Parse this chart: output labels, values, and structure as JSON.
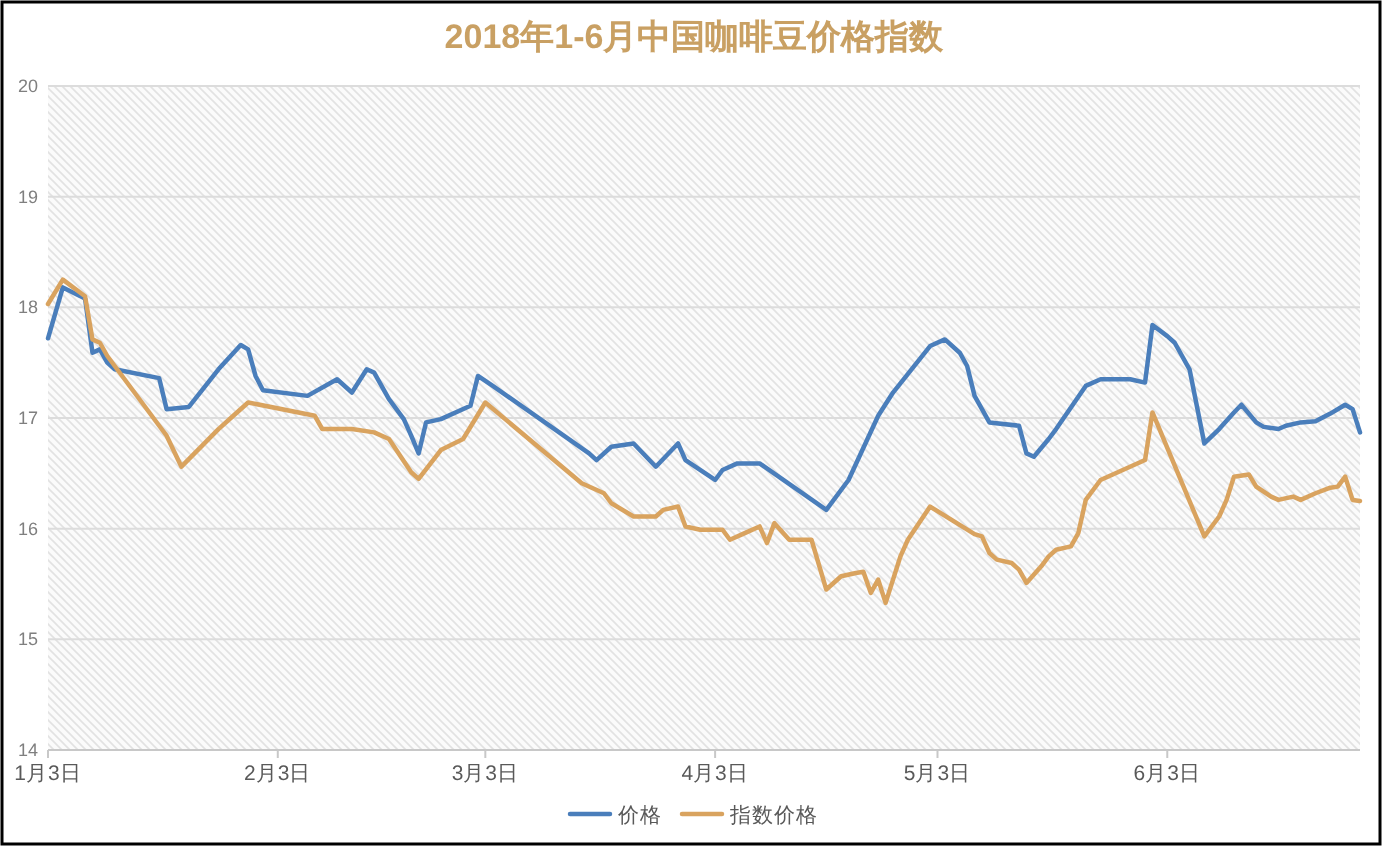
{
  "chart_data": {
    "type": "line",
    "title": "2018年1-6月中国咖啡豆价格指数",
    "series": [
      {
        "name": "价格",
        "color": "#4a7ebb",
        "x": [
          "2018-01-03",
          "2018-01-05",
          "2018-01-08",
          "2018-01-09",
          "2018-01-10",
          "2018-01-11",
          "2018-01-12",
          "2018-01-18",
          "2018-01-19",
          "2018-01-22",
          "2018-01-26",
          "2018-01-29",
          "2018-01-30",
          "2018-01-31",
          "2018-02-01",
          "2018-02-07",
          "2018-02-11",
          "2018-02-13",
          "2018-02-15",
          "2018-02-16",
          "2018-02-18",
          "2018-02-20",
          "2018-02-21",
          "2018-02-22",
          "2018-02-23",
          "2018-02-25",
          "2018-03-01",
          "2018-03-02",
          "2018-03-04",
          "2018-03-17",
          "2018-03-18",
          "2018-03-20",
          "2018-03-23",
          "2018-03-26",
          "2018-03-29",
          "2018-03-30",
          "2018-04-03",
          "2018-04-04",
          "2018-04-06",
          "2018-04-09",
          "2018-04-18",
          "2018-04-21",
          "2018-04-25",
          "2018-04-27",
          "2018-05-02",
          "2018-05-04",
          "2018-05-06",
          "2018-05-07",
          "2018-05-08",
          "2018-05-10",
          "2018-05-14",
          "2018-05-15",
          "2018-05-16",
          "2018-05-18",
          "2018-05-19",
          "2018-05-23",
          "2018-05-25",
          "2018-05-29",
          "2018-05-31",
          "2018-06-01",
          "2018-06-03",
          "2018-06-04",
          "2018-06-06",
          "2018-06-08",
          "2018-06-10",
          "2018-06-12",
          "2018-06-13",
          "2018-06-15",
          "2018-06-16",
          "2018-06-18",
          "2018-06-19",
          "2018-06-21",
          "2018-06-23",
          "2018-06-25",
          "2018-06-27",
          "2018-06-28",
          "2018-06-29"
        ],
        "values": [
          17.72,
          18.18,
          18.08,
          17.59,
          17.62,
          17.5,
          17.44,
          17.36,
          17.08,
          17.1,
          17.44,
          17.66,
          17.62,
          17.38,
          17.25,
          17.2,
          17.35,
          17.23,
          17.44,
          17.41,
          17.17,
          16.99,
          16.84,
          16.68,
          16.96,
          16.99,
          17.11,
          17.38,
          17.29,
          16.68,
          16.62,
          16.74,
          16.77,
          16.56,
          16.77,
          16.62,
          16.44,
          16.53,
          16.59,
          16.59,
          16.17,
          16.44,
          17.02,
          17.23,
          17.65,
          17.71,
          17.59,
          17.47,
          17.2,
          16.96,
          16.93,
          16.68,
          16.65,
          16.81,
          16.9,
          17.29,
          17.35,
          17.35,
          17.32,
          17.84,
          17.74,
          17.68,
          17.44,
          16.77,
          16.9,
          17.05,
          17.12,
          16.96,
          16.92,
          16.9,
          16.93,
          16.96,
          16.97,
          17.04,
          17.12,
          17.08,
          16.87
        ]
      },
      {
        "name": "指数价格",
        "color": "#d9a35f",
        "x": [
          "2018-01-03",
          "2018-01-05",
          "2018-01-08",
          "2018-01-09",
          "2018-01-10",
          "2018-01-11",
          "2018-01-18",
          "2018-01-19",
          "2018-01-21",
          "2018-01-26",
          "2018-01-28",
          "2018-01-30",
          "2018-02-08",
          "2018-02-09",
          "2018-02-13",
          "2018-02-16",
          "2018-02-18",
          "2018-02-21",
          "2018-02-22",
          "2018-02-25",
          "2018-02-28",
          "2018-03-03",
          "2018-03-16",
          "2018-03-19",
          "2018-03-20",
          "2018-03-23",
          "2018-03-26",
          "2018-03-27",
          "2018-03-29",
          "2018-03-30",
          "2018-04-01",
          "2018-04-04",
          "2018-04-05",
          "2018-04-07",
          "2018-04-09",
          "2018-04-10",
          "2018-04-11",
          "2018-04-13",
          "2018-04-16",
          "2018-04-18",
          "2018-04-20",
          "2018-04-22",
          "2018-04-23",
          "2018-04-24",
          "2018-04-25",
          "2018-04-26",
          "2018-04-28",
          "2018-04-29",
          "2018-05-02",
          "2018-05-08",
          "2018-05-09",
          "2018-05-10",
          "2018-05-11",
          "2018-05-13",
          "2018-05-14",
          "2018-05-15",
          "2018-05-17",
          "2018-05-18",
          "2018-05-19",
          "2018-05-21",
          "2018-05-22",
          "2018-05-23",
          "2018-05-25",
          "2018-05-31",
          "2018-06-01",
          "2018-06-08",
          "2018-06-10",
          "2018-06-11",
          "2018-06-12",
          "2018-06-14",
          "2018-06-15",
          "2018-06-17",
          "2018-06-18",
          "2018-06-20",
          "2018-06-21",
          "2018-06-23",
          "2018-06-25",
          "2018-06-26",
          "2018-06-27",
          "2018-06-28",
          "2018-06-29"
        ],
        "values": [
          18.03,
          18.25,
          18.1,
          17.71,
          17.68,
          17.56,
          16.93,
          16.84,
          16.56,
          16.9,
          17.02,
          17.14,
          17.02,
          16.9,
          16.9,
          16.87,
          16.81,
          16.51,
          16.45,
          16.71,
          16.81,
          17.14,
          16.41,
          16.32,
          16.23,
          16.11,
          16.11,
          16.17,
          16.2,
          16.02,
          15.99,
          15.99,
          15.9,
          15.96,
          16.02,
          15.87,
          16.05,
          15.9,
          15.9,
          15.45,
          15.57,
          15.6,
          15.61,
          15.42,
          15.54,
          15.33,
          15.75,
          15.9,
          16.2,
          15.95,
          15.93,
          15.78,
          15.72,
          15.69,
          15.63,
          15.51,
          15.66,
          15.75,
          15.81,
          15.84,
          15.96,
          16.26,
          16.44,
          16.62,
          17.05,
          15.93,
          16.11,
          16.26,
          16.47,
          16.49,
          16.38,
          16.29,
          16.26,
          16.29,
          16.26,
          16.32,
          16.37,
          16.38,
          16.47,
          16.26,
          16.25
        ]
      }
    ],
    "xlim": [
      "2018-01-03",
      "2018-06-29"
    ],
    "xticks": [
      {
        "value": "2018-01-03",
        "label": "1月3日"
      },
      {
        "value": "2018-02-03",
        "label": "2月3日"
      },
      {
        "value": "2018-03-03",
        "label": "3月3日"
      },
      {
        "value": "2018-04-03",
        "label": "4月3日"
      },
      {
        "value": "2018-05-03",
        "label": "5月3日"
      },
      {
        "value": "2018-06-03",
        "label": "6月3日"
      }
    ],
    "ylim": [
      14,
      20
    ],
    "yticks": [
      14,
      15,
      16,
      17,
      18,
      19,
      20
    ],
    "grid": "y",
    "legend": "bottom"
  }
}
